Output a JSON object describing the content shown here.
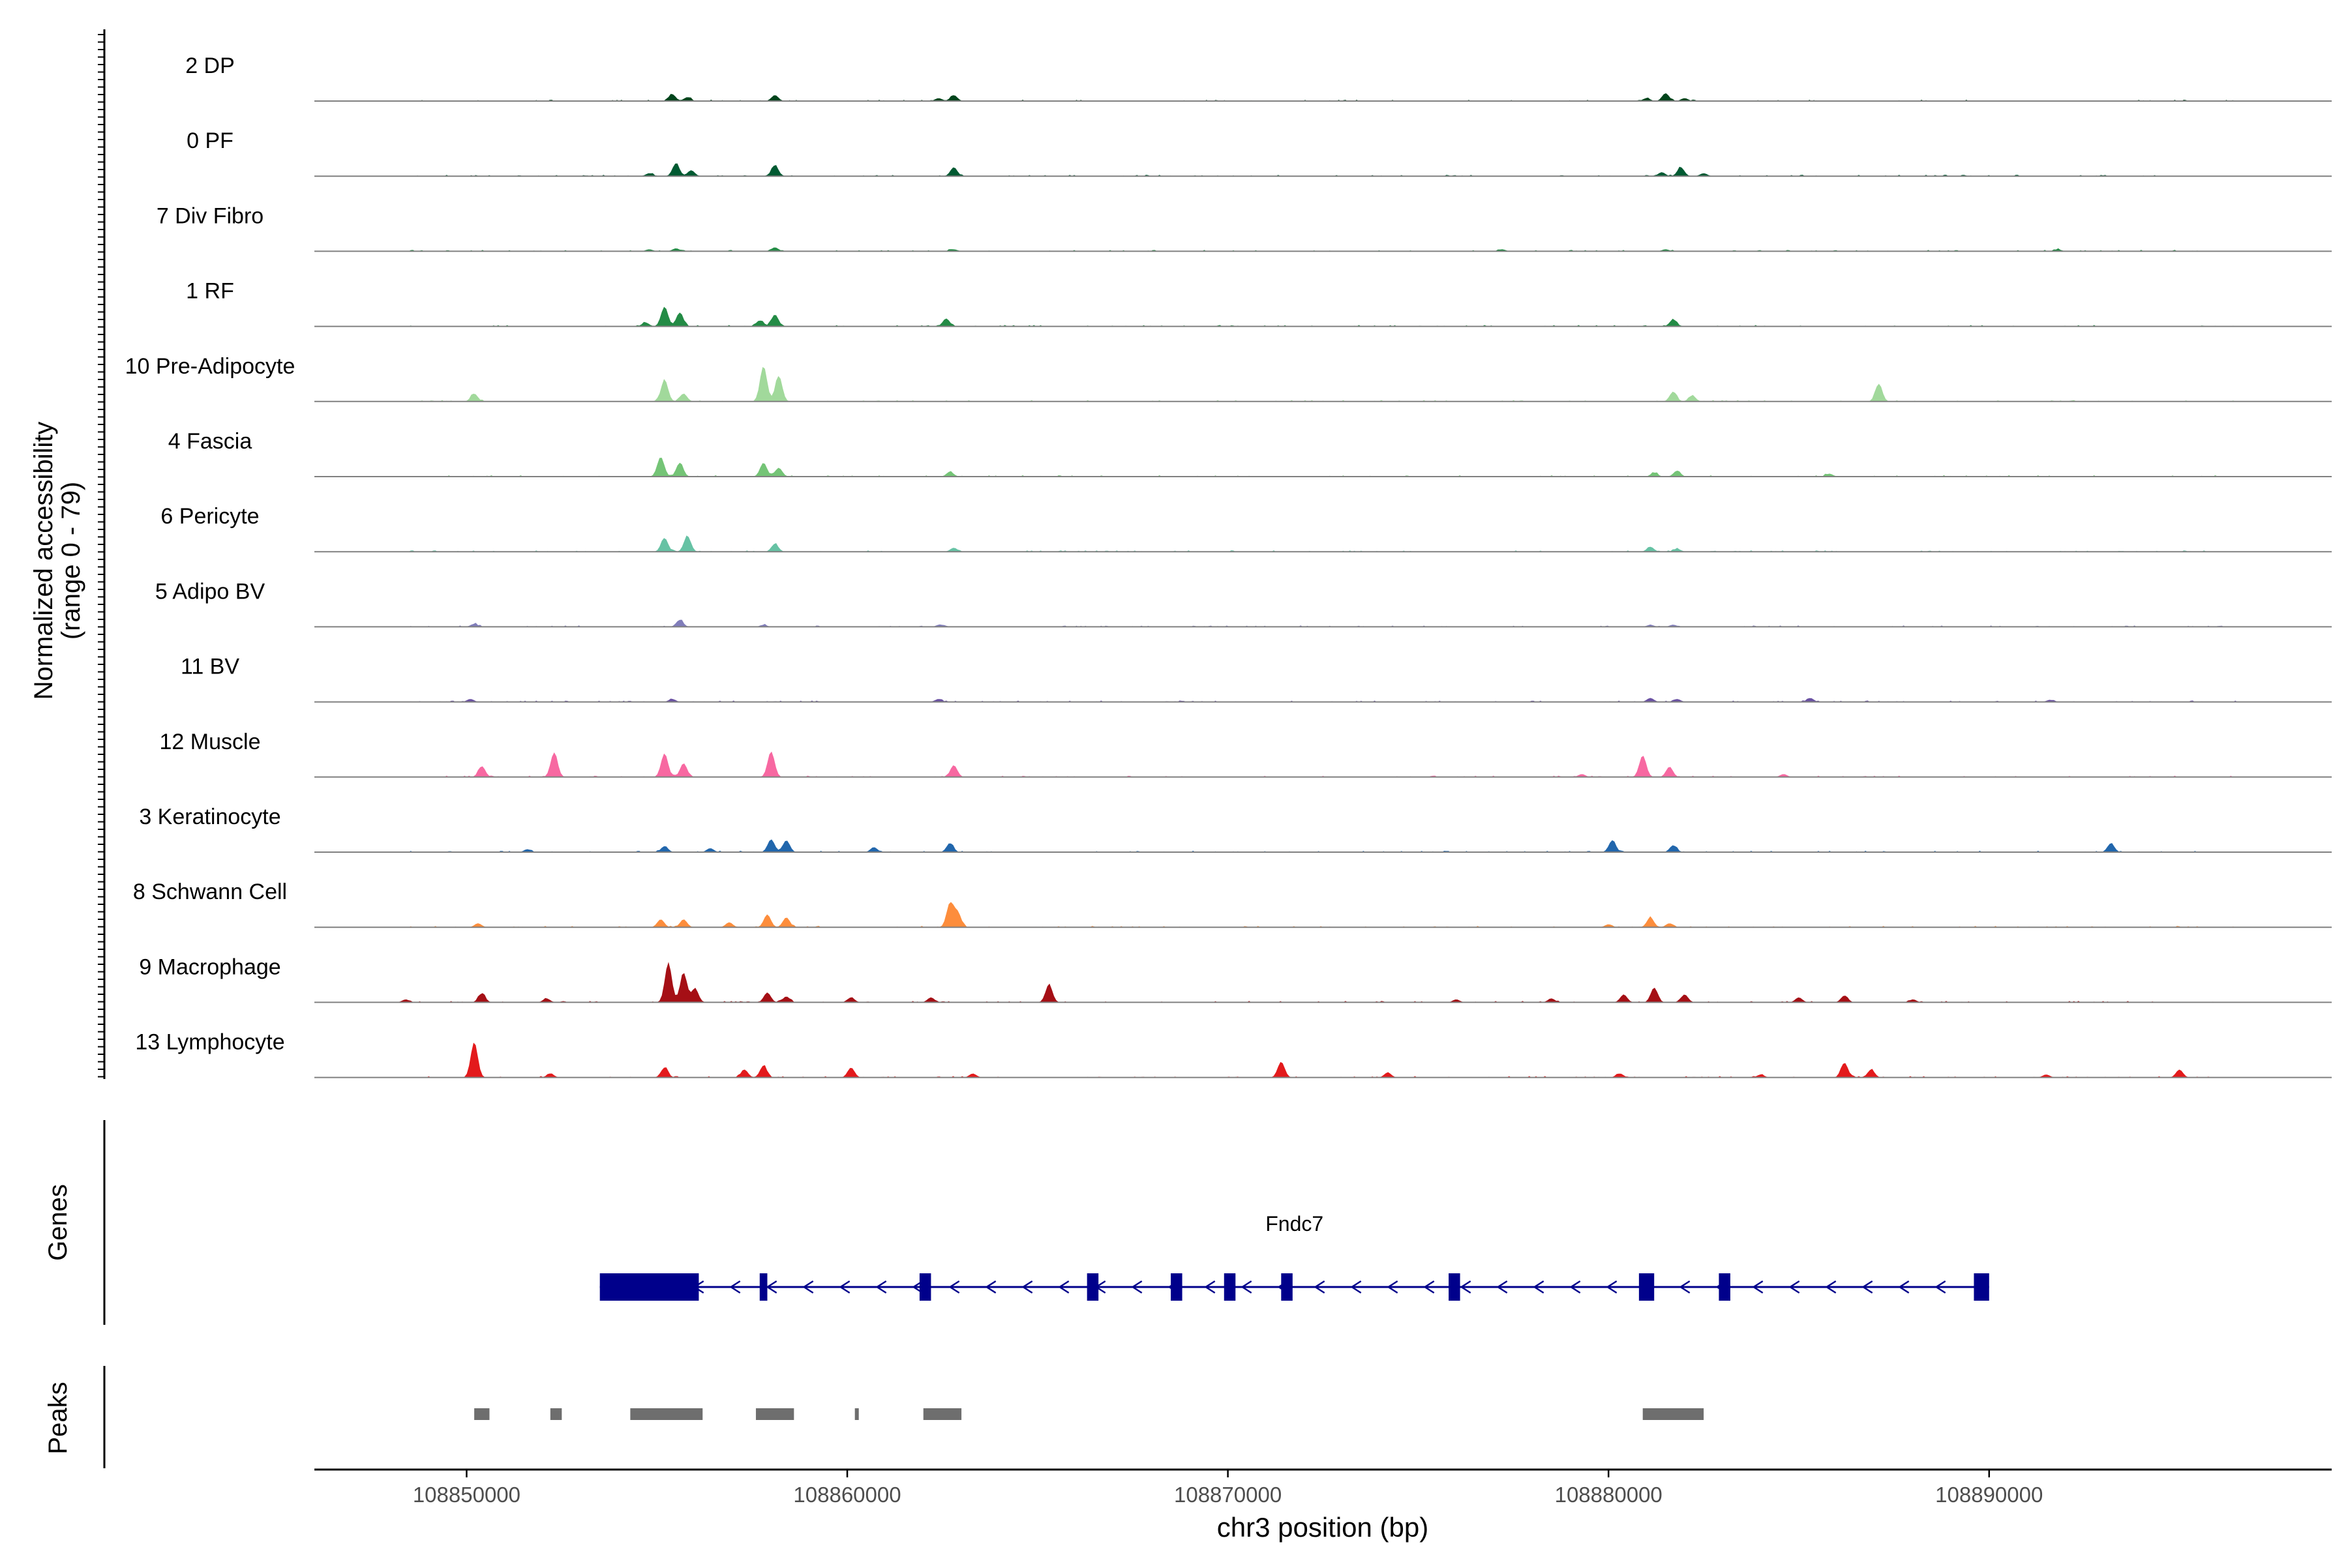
{
  "chart_data": {
    "type": "area",
    "title": "",
    "y_axis_label_line1": "Normalized accessibility",
    "y_axis_label_line2": "(range 0 - 79)",
    "y_range": [
      0,
      79
    ],
    "x_axis_label": "chr3 position (bp)",
    "x_range": [
      108846000,
      108899000
    ],
    "x_ticks": [
      {
        "value": 108850000,
        "label": "108850000"
      },
      {
        "value": 108860000,
        "label": "108860000"
      },
      {
        "value": 108870000,
        "label": "108870000"
      },
      {
        "value": 108880000,
        "label": "108880000"
      },
      {
        "value": 108890000,
        "label": "108890000"
      }
    ],
    "tracks": [
      {
        "name": "2 DP",
        "color": "#00441b",
        "peaks": [
          [
            108855400,
            7
          ],
          [
            108855800,
            4
          ],
          [
            108858100,
            6
          ],
          [
            108862400,
            3
          ],
          [
            108862800,
            6
          ],
          [
            108881000,
            3
          ],
          [
            108881500,
            8
          ],
          [
            108882000,
            3
          ]
        ]
      },
      {
        "name": "0 PF",
        "color": "#005a32",
        "peaks": [
          [
            108854800,
            3
          ],
          [
            108855500,
            13
          ],
          [
            108855900,
            6
          ],
          [
            108858100,
            11
          ],
          [
            108862800,
            9
          ],
          [
            108881400,
            4
          ],
          [
            108881900,
            9
          ],
          [
            108882500,
            3
          ]
        ]
      },
      {
        "name": "7 Div Fibro",
        "color": "#238b45",
        "peaks": [
          [
            108854800,
            2
          ],
          [
            108855500,
            3
          ],
          [
            108858100,
            4
          ],
          [
            108862800,
            2
          ],
          [
            108877200,
            2
          ],
          [
            108881500,
            2
          ],
          [
            108891800,
            2
          ]
        ]
      },
      {
        "name": "1 RF",
        "color": "#238b45",
        "peaks": [
          [
            108854700,
            4
          ],
          [
            108855200,
            20
          ],
          [
            108855600,
            14
          ],
          [
            108857700,
            6
          ],
          [
            108858100,
            12
          ],
          [
            108862600,
            8
          ],
          [
            108881700,
            7
          ]
        ]
      },
      {
        "name": "10 Pre-Adipocyte",
        "color": "#a1d99b",
        "peaks": [
          [
            108850200,
            8
          ],
          [
            108855200,
            22
          ],
          [
            108855700,
            8
          ],
          [
            108857800,
            36
          ],
          [
            108858200,
            26
          ],
          [
            108881700,
            10
          ],
          [
            108882200,
            6
          ],
          [
            108887100,
            18
          ]
        ]
      },
      {
        "name": "4 Fascia",
        "color": "#74c476",
        "peaks": [
          [
            108855100,
            20
          ],
          [
            108855600,
            14
          ],
          [
            108857800,
            14
          ],
          [
            108858200,
            9
          ],
          [
            108862700,
            5
          ],
          [
            108881200,
            4
          ],
          [
            108881800,
            6
          ],
          [
            108885800,
            3
          ]
        ]
      },
      {
        "name": "6 Pericyte",
        "color": "#66c2a4",
        "peaks": [
          [
            108855200,
            14
          ],
          [
            108855800,
            16
          ],
          [
            108858100,
            8
          ],
          [
            108862800,
            4
          ],
          [
            108881100,
            5
          ],
          [
            108881800,
            3
          ]
        ]
      },
      {
        "name": "5 Adipo BV",
        "color": "#807dba",
        "peaks": [
          [
            108850200,
            3
          ],
          [
            108855600,
            7
          ],
          [
            108857800,
            2
          ],
          [
            108862500,
            2
          ],
          [
            108881100,
            2
          ],
          [
            108881700,
            2
          ]
        ]
      },
      {
        "name": "11 BV",
        "color": "#6a51a3",
        "peaks": [
          [
            108850100,
            3
          ],
          [
            108855400,
            3
          ],
          [
            108862400,
            3
          ],
          [
            108881100,
            4
          ],
          [
            108881800,
            3
          ],
          [
            108885300,
            4
          ],
          [
            108891600,
            2
          ]
        ]
      },
      {
        "name": "12 Muscle",
        "color": "#f768a1",
        "peaks": [
          [
            108850400,
            11
          ],
          [
            108852300,
            25
          ],
          [
            108855200,
            24
          ],
          [
            108855700,
            14
          ],
          [
            108858000,
            26
          ],
          [
            108862800,
            12
          ],
          [
            108879300,
            3
          ],
          [
            108880900,
            22
          ],
          [
            108881600,
            10
          ],
          [
            108884600,
            3
          ]
        ]
      },
      {
        "name": "3 Keratinocyte",
        "color": "#2166ac",
        "peaks": [
          [
            108851600,
            3
          ],
          [
            108855200,
            6
          ],
          [
            108856400,
            4
          ],
          [
            108858000,
            13
          ],
          [
            108858400,
            12
          ],
          [
            108860700,
            5
          ],
          [
            108862700,
            9
          ],
          [
            108880100,
            12
          ],
          [
            108881700,
            7
          ],
          [
            108893200,
            9
          ]
        ]
      },
      {
        "name": "8 Schwann Cell",
        "color": "#fd8d3c",
        "peaks": [
          [
            108850300,
            4
          ],
          [
            108855100,
            8
          ],
          [
            108855700,
            8
          ],
          [
            108856900,
            5
          ],
          [
            108857900,
            13
          ],
          [
            108858400,
            10
          ],
          [
            108862700,
            24
          ],
          [
            108862900,
            15
          ],
          [
            108880000,
            3
          ],
          [
            108881100,
            10
          ],
          [
            108881600,
            4
          ]
        ]
      },
      {
        "name": "9 Macrophage",
        "color": "#a50f15",
        "peaks": [
          [
            108848400,
            3
          ],
          [
            108850400,
            9
          ],
          [
            108852100,
            4
          ],
          [
            108855300,
            40
          ],
          [
            108855700,
            30
          ],
          [
            108856000,
            14
          ],
          [
            108857900,
            10
          ],
          [
            108858400,
            6
          ],
          [
            108860100,
            5
          ],
          [
            108862200,
            5
          ],
          [
            108865300,
            18
          ],
          [
            108876000,
            3
          ],
          [
            108878500,
            4
          ],
          [
            108880400,
            8
          ],
          [
            108881200,
            15
          ],
          [
            108882000,
            8
          ],
          [
            108885000,
            5
          ],
          [
            108886200,
            7
          ],
          [
            108888000,
            3
          ]
        ]
      },
      {
        "name": "13 Lymphocyte",
        "color": "#e31a1c",
        "peaks": [
          [
            108850200,
            36
          ],
          [
            108852200,
            4
          ],
          [
            108855200,
            10
          ],
          [
            108857300,
            8
          ],
          [
            108857800,
            12
          ],
          [
            108860100,
            10
          ],
          [
            108863300,
            4
          ],
          [
            108871400,
            16
          ],
          [
            108874200,
            5
          ],
          [
            108880300,
            4
          ],
          [
            108884000,
            3
          ],
          [
            108886200,
            15
          ],
          [
            108886900,
            8
          ],
          [
            108891500,
            3
          ],
          [
            108895000,
            8
          ]
        ]
      }
    ],
    "genes_label": "Genes",
    "gene": {
      "name": "Fndc7",
      "color": "#00008b",
      "start": 108853500,
      "end": 108890000,
      "strand": "-",
      "exons": [
        [
          108853500,
          108856100
        ],
        [
          108857700,
          108857900
        ],
        [
          108861900,
          108862200
        ],
        [
          108866300,
          108866600
        ],
        [
          108868500,
          108868800
        ],
        [
          108869900,
          108870200
        ],
        [
          108871400,
          108871700
        ],
        [
          108875800,
          108876100
        ],
        [
          108880800,
          108881200
        ],
        [
          108882900,
          108883200
        ],
        [
          108889600,
          108890000
        ]
      ]
    },
    "peaks_label": "Peaks",
    "peak_regions": [
      [
        108850200,
        108850600
      ],
      [
        108852200,
        108852500
      ],
      [
        108854300,
        108856200
      ],
      [
        108857600,
        108858600
      ],
      [
        108860200,
        108860300
      ],
      [
        108862000,
        108863000
      ],
      [
        108880900,
        108882500
      ]
    ]
  }
}
